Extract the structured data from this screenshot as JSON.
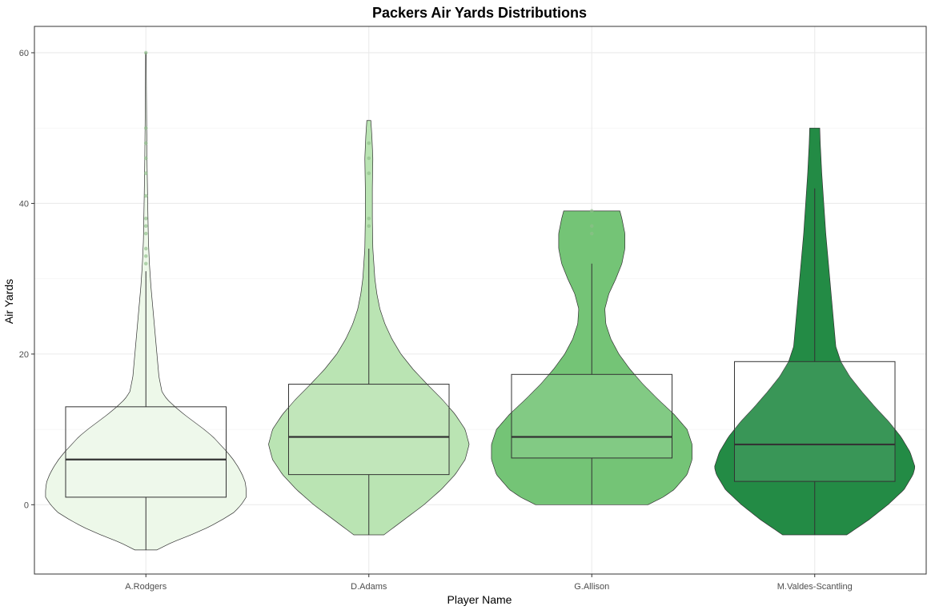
{
  "chart_data": {
    "type": "violin",
    "title": "Packers Air Yards Distributions",
    "xlabel": "Player Name",
    "ylabel": "Air Yards",
    "ylim": [
      -9.2,
      63.5
    ],
    "yticks": [
      0,
      20,
      40,
      60
    ],
    "grid": true,
    "legend": "none",
    "categories": [
      "A.Rodgers",
      "D.Adams",
      "G.Allison",
      "M.Valdes-Scantling"
    ],
    "series": [
      {
        "category": "A.Rodgers",
        "color": "#edf8e9",
        "box": {
          "lower": 1,
          "median": 6,
          "upper": 13
        },
        "whisker": {
          "low": -6,
          "high": 31
        },
        "outliers": [
          32,
          33,
          34,
          36,
          37,
          38,
          41,
          44,
          46,
          48,
          50,
          60
        ],
        "density_profile": [
          [
            -6,
            0.11
          ],
          [
            -5,
            0.26
          ],
          [
            -4,
            0.45
          ],
          [
            -3,
            0.62
          ],
          [
            -2,
            0.76
          ],
          [
            -1,
            0.88
          ],
          [
            0,
            0.95
          ],
          [
            1,
            1.0
          ],
          [
            2,
            1.0
          ],
          [
            3,
            0.99
          ],
          [
            4,
            0.96
          ],
          [
            5,
            0.92
          ],
          [
            6,
            0.87
          ],
          [
            7,
            0.81
          ],
          [
            8,
            0.74
          ],
          [
            9,
            0.67
          ],
          [
            10,
            0.58
          ],
          [
            11,
            0.48
          ],
          [
            12,
            0.38
          ],
          [
            13,
            0.29
          ],
          [
            14,
            0.21
          ],
          [
            15,
            0.16
          ],
          [
            17,
            0.13
          ],
          [
            20,
            0.11
          ],
          [
            23,
            0.09
          ],
          [
            26,
            0.07
          ],
          [
            29,
            0.05
          ],
          [
            32,
            0.035
          ],
          [
            35,
            0.025
          ],
          [
            40,
            0.018
          ],
          [
            45,
            0.012
          ],
          [
            50,
            0.008
          ],
          [
            55,
            0.005
          ],
          [
            60,
            0.003
          ]
        ]
      },
      {
        "category": "D.Adams",
        "color": "#bae4b3",
        "box": {
          "lower": 4,
          "median": 9,
          "upper": 16
        },
        "whisker": {
          "low": -4,
          "high": 34
        },
        "outliers": [
          37,
          38,
          44,
          46,
          48
        ],
        "density_profile": [
          [
            -4,
            0.15
          ],
          [
            -2,
            0.35
          ],
          [
            0,
            0.55
          ],
          [
            2,
            0.72
          ],
          [
            4,
            0.86
          ],
          [
            6,
            0.96
          ],
          [
            8,
            1.0
          ],
          [
            10,
            0.96
          ],
          [
            12,
            0.86
          ],
          [
            14,
            0.73
          ],
          [
            16,
            0.58
          ],
          [
            18,
            0.44
          ],
          [
            20,
            0.32
          ],
          [
            22,
            0.23
          ],
          [
            24,
            0.16
          ],
          [
            26,
            0.11
          ],
          [
            28,
            0.08
          ],
          [
            30,
            0.06
          ],
          [
            34,
            0.04
          ],
          [
            38,
            0.035
          ],
          [
            42,
            0.035
          ],
          [
            46,
            0.04
          ],
          [
            49,
            0.03
          ],
          [
            51,
            0.02
          ]
        ]
      },
      {
        "category": "G.Allison",
        "color": "#74c476",
        "box": {
          "lower": 6.2,
          "median": 9,
          "upper": 17.3
        },
        "whisker": {
          "low": 0,
          "high": 32
        },
        "outliers": [
          36,
          37,
          39
        ],
        "density_profile": [
          [
            0,
            0.56
          ],
          [
            1,
            0.71
          ],
          [
            2,
            0.82
          ],
          [
            4,
            0.95
          ],
          [
            6,
            1.0
          ],
          [
            8,
            1.0
          ],
          [
            10,
            0.95
          ],
          [
            12,
            0.82
          ],
          [
            14,
            0.66
          ],
          [
            16,
            0.51
          ],
          [
            18,
            0.38
          ],
          [
            20,
            0.27
          ],
          [
            22,
            0.19
          ],
          [
            24,
            0.14
          ],
          [
            26,
            0.13
          ],
          [
            28,
            0.17
          ],
          [
            30,
            0.24
          ],
          [
            32,
            0.3
          ],
          [
            34,
            0.33
          ],
          [
            36,
            0.33
          ],
          [
            38,
            0.3
          ],
          [
            39,
            0.28
          ]
        ]
      },
      {
        "category": "M.Valdes-Scantling",
        "color": "#238b45",
        "box": {
          "lower": 3.1,
          "median": 8,
          "upper": 19
        },
        "whisker": {
          "low": -4,
          "high": 42
        },
        "outliers": [],
        "density_profile": [
          [
            -4,
            0.32
          ],
          [
            -2,
            0.54
          ],
          [
            0,
            0.73
          ],
          [
            2,
            0.89
          ],
          [
            4,
            0.98
          ],
          [
            5,
            1.0
          ],
          [
            7,
            0.95
          ],
          [
            9,
            0.86
          ],
          [
            11,
            0.74
          ],
          [
            13,
            0.6
          ],
          [
            15,
            0.47
          ],
          [
            17,
            0.35
          ],
          [
            19,
            0.26
          ],
          [
            21,
            0.21
          ],
          [
            24,
            0.19
          ],
          [
            27,
            0.17
          ],
          [
            30,
            0.15
          ],
          [
            33,
            0.13
          ],
          [
            36,
            0.11
          ],
          [
            40,
            0.09
          ],
          [
            44,
            0.07
          ],
          [
            48,
            0.055
          ],
          [
            50,
            0.05
          ]
        ]
      }
    ]
  }
}
